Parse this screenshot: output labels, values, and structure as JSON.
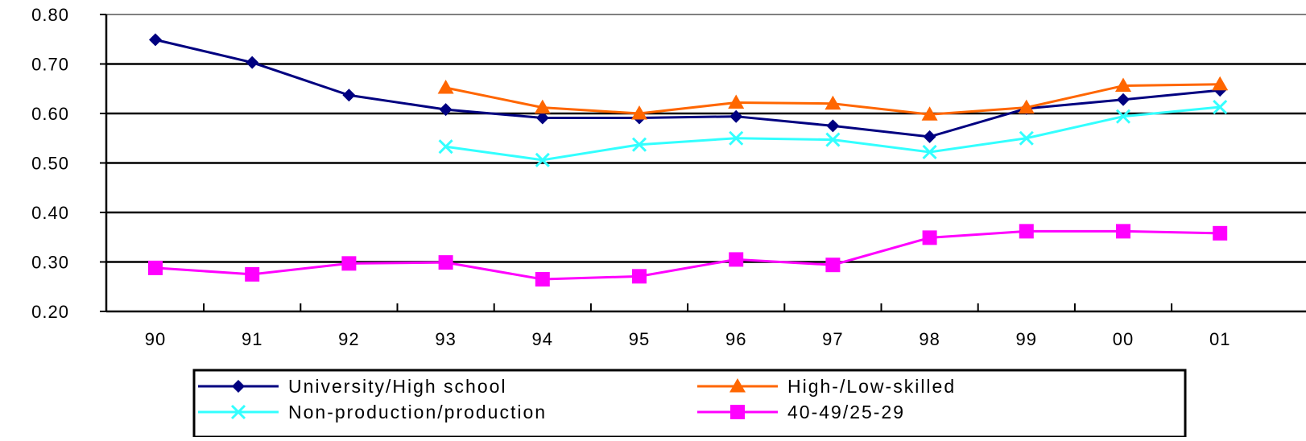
{
  "chart_data": {
    "type": "line",
    "title": "",
    "xlabel": "",
    "ylabel": "",
    "categories": [
      "90",
      "91",
      "92",
      "93",
      "94",
      "95",
      "96",
      "97",
      "98",
      "99",
      "00",
      "01"
    ],
    "ylim": [
      0.2,
      0.8
    ],
    "yticks": [
      "0.20",
      "0.30",
      "0.40",
      "0.50",
      "0.60",
      "0.70",
      "0.80"
    ],
    "grid": "horizontal",
    "legend_position": "bottom",
    "series": [
      {
        "name": "University/High school",
        "color": "#000080",
        "marker": "diamond",
        "values": [
          0.749,
          0.703,
          0.637,
          0.608,
          0.591,
          0.591,
          0.594,
          0.575,
          0.553,
          0.61,
          0.628,
          0.647
        ]
      },
      {
        "name": "High-/Low-skilled",
        "color": "#ff6600",
        "marker": "triangle",
        "values": [
          null,
          null,
          null,
          0.652,
          0.612,
          0.6,
          0.622,
          0.62,
          0.598,
          0.612,
          0.656,
          0.659
        ]
      },
      {
        "name": "Non-production/production",
        "color": "#33ffff",
        "marker": "x",
        "values": [
          null,
          null,
          null,
          0.533,
          0.506,
          0.537,
          0.55,
          0.547,
          0.522,
          0.55,
          0.594,
          0.613
        ]
      },
      {
        "name": "40-49/25-29",
        "color": "#ff00ff",
        "marker": "square",
        "values": [
          0.288,
          0.275,
          0.297,
          0.299,
          0.265,
          0.271,
          0.305,
          0.294,
          0.349,
          0.362,
          0.362,
          0.358
        ]
      }
    ]
  }
}
